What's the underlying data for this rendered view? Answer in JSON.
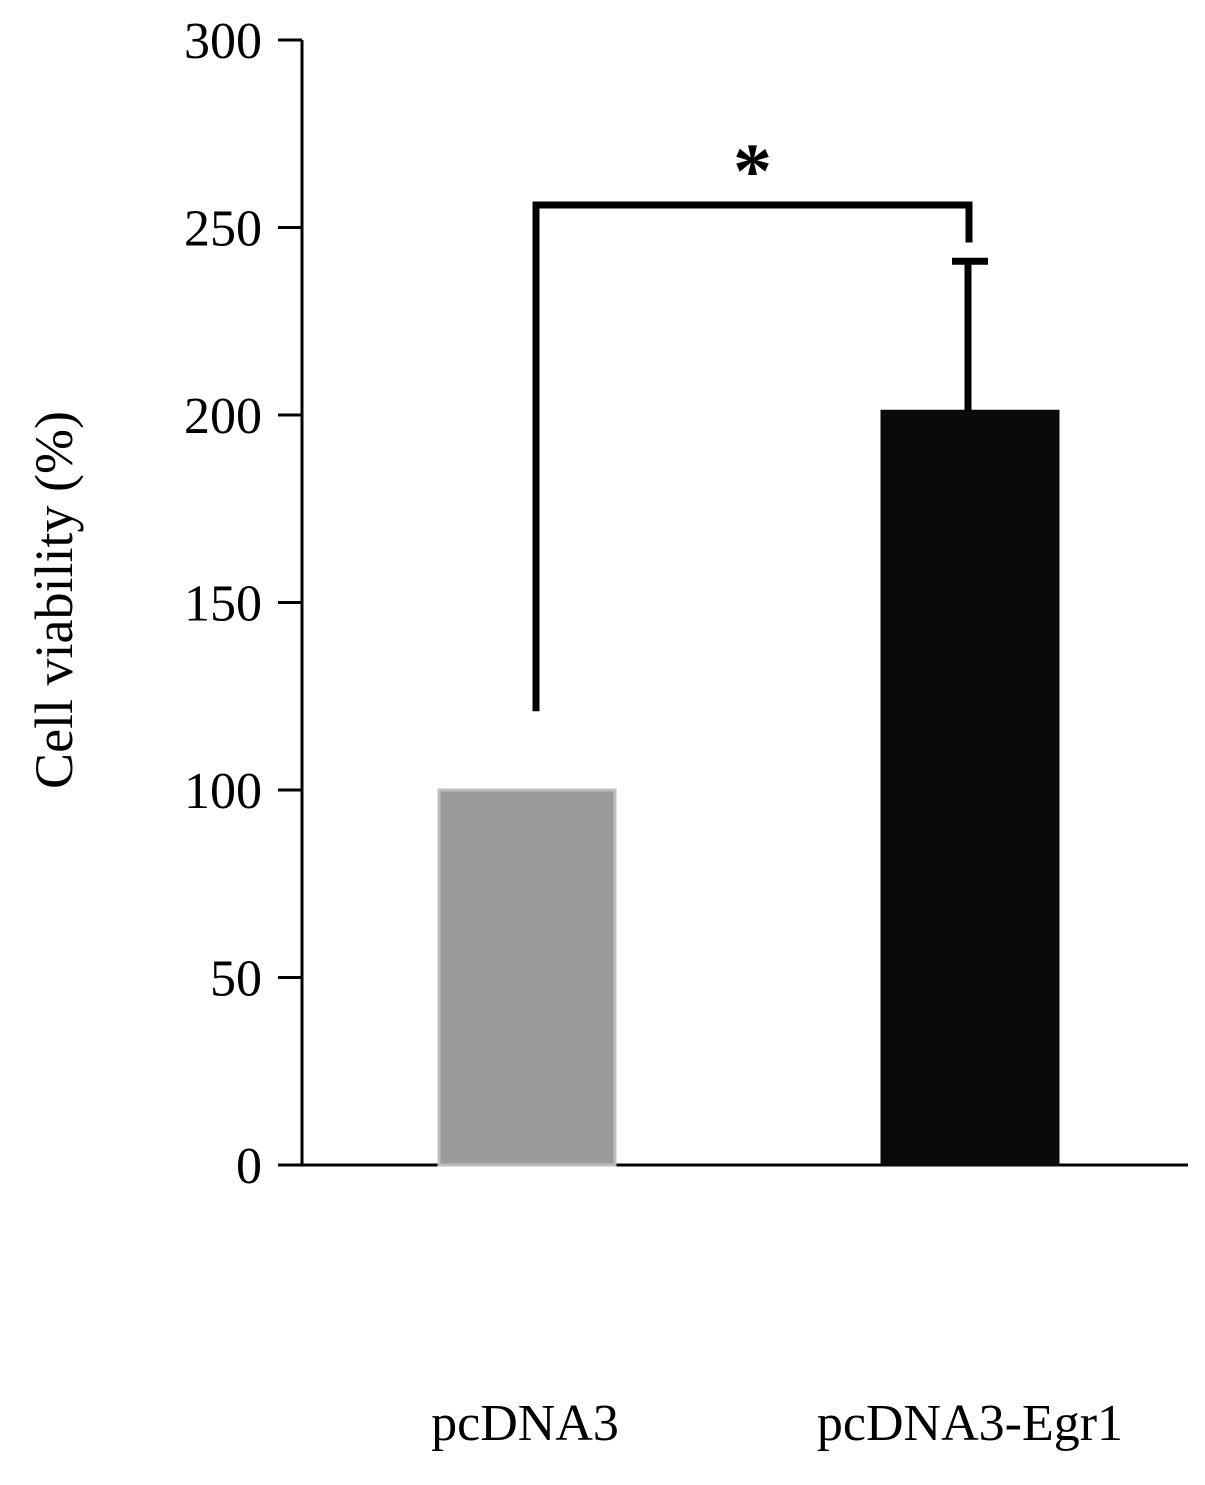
{
  "chart_data": {
    "type": "bar",
    "ylabel": "Cell viability (%)",
    "xlabel": "",
    "ylim": [
      0,
      300
    ],
    "yticks": [
      0,
      50,
      100,
      150,
      200,
      250,
      300
    ],
    "ytick_labels": [
      "0",
      "50",
      "100",
      "150",
      "200",
      "250",
      "300"
    ],
    "categories": [
      "pcDNA3",
      "pcDNA3-Egr1"
    ],
    "values": [
      100,
      201
    ],
    "error_upper": [
      null,
      241
    ],
    "bar_colors": [
      "#9a9a9a",
      "#0a0a0a"
    ],
    "significance": {
      "label": "*",
      "between": [
        "pcDNA3",
        "pcDNA3-Egr1"
      ],
      "bracket_y": 256,
      "left_drop_to": 121,
      "right_drop_to": 246
    },
    "grid": false,
    "legend": "none"
  }
}
